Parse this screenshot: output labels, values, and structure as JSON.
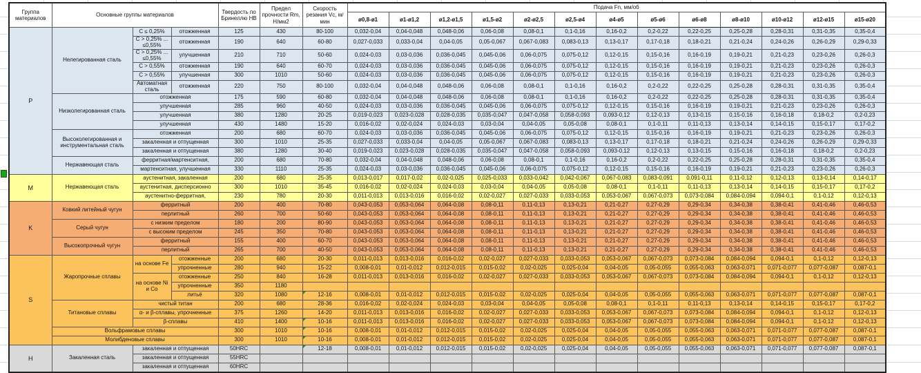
{
  "header": {
    "group_col": "Группа материалов",
    "main_col": "Основные группы материалов",
    "hardness_col": "Твердость по Бринеллю НВ",
    "strength_col": "Предел прочности Rm, Н/мм2",
    "speed_col": "Скорость резания Vc, м/мин",
    "feed_title": "Подача Fn, мм/об",
    "diameters": [
      "ø0,8-ø1",
      "ø1-ø1,2",
      "ø1,2-ø1,5",
      "ø1,5-ø2",
      "ø2-ø2,5",
      "ø2,5-ø4",
      "ø4-ø5",
      "ø5-ø6",
      "ø6-ø8",
      "ø8-ø10",
      "ø10-ø12",
      "ø12-ø15",
      "ø15-ø20"
    ]
  },
  "colors": {
    "group_p": "#DCE6F1",
    "group_m": "#FFFF99",
    "group_k": "#F6AD74",
    "group_s": "#FCC25C",
    "group_h": "#D9D9D9",
    "note_marker": "#2E8B2E",
    "selected_cell": "#1EA11E",
    "border": "#595959"
  },
  "fn_patterns": {
    "P1": [
      "0,032-0,04",
      "0,04-0,048",
      "0,048-0,06",
      "0,06-0,08",
      "0,08-0,1",
      "0,1-0,16",
      "0,16-0,2",
      "0,2-0,22",
      "0,22-0,25",
      "0,25-0,28",
      "0,28-0,31",
      "0,31-0,35",
      "0,35-0,4"
    ],
    "P2": [
      "0,027-0,033",
      "0,033-0,04",
      "0,04-0,05",
      "0,05-0,067",
      "0,067-0,083",
      "0,083-0,13",
      "0,13-0,17",
      "0,17-0,18",
      "0,18-0,21",
      "0,21-0,24",
      "0,24-0,26",
      "0,26-0,29",
      "0,29-0,33"
    ],
    "P3": [
      "0,024-0,03",
      "0,03-0,036",
      "0,036-0,045",
      "0,045-0,06",
      "0,06-0,075",
      "0,075-0,12",
      "0,12-0,15",
      "0,15-0,16",
      "0,16-0,19",
      "0,19-0,21",
      "0,21-0,23",
      "0,23-0,26",
      "0,26-0,3"
    ],
    "P9": [
      "0,019-0,023",
      "0,023-0,028",
      "0,028-0,035",
      "0,035-0,047",
      "0,047-0,058",
      "0,058-0,093",
      "0,093-0,12",
      "0,12-0,13",
      "0,13-0,15",
      "0,15-0,16",
      "0,16-0,18",
      "0,18-0,2",
      "0,2-0,23"
    ],
    "P10": [
      "0,016-0,02",
      "0,02-0,024",
      "0,024-0,03",
      "0,03-0,04",
      "0,04-0,05",
      "0,05-0,08",
      "0,08-0,1",
      "0,1-0,11",
      "0,11-0,13",
      "0,13-0,14",
      "0,14-0,15",
      "0,15-0,17",
      "0,17-0,2"
    ],
    "M16": [
      "0,013-0,017",
      "0,017-0,02",
      "0,02-0,025",
      "0,025-0,033",
      "0,033-0,042",
      "0,042-0,067",
      "0,067-0,083",
      "0,083-0,091",
      "0,091-0,11",
      "0,11-0,12",
      "0,12-0,13",
      "0,13-0,14",
      "0,14-0,17"
    ],
    "M18": [
      "0,011-0,013",
      "0,013-0,016",
      "0,016-0,02",
      "0,02-0,027",
      "0,027-0,033",
      "0,033-0,053",
      "0,053-0,067",
      "0,067-0,073",
      "0,073-0,084",
      "0,084-0,094",
      "0,094-0,1",
      "0,1-0,12",
      "0,12-0,13"
    ],
    "K": [
      "0,043-0,053",
      "0,053-0,064",
      "0,064-0,08",
      "0,08-0,11",
      "0,11-0,13",
      "0,13-0,21",
      "0,21-0,27",
      "0,27-0,29",
      "0,29-0,34",
      "0,34-0,38",
      "0,38-0,41",
      "0,41-0,46",
      "0,46-0,53"
    ],
    "S26": [
      "0,008-0,01",
      "0,01-0,012",
      "0,012-0,015",
      "0,015-0,02",
      "0,02-0,025",
      "0,025-0,04",
      "0,04-0,05",
      "0,05-0,055",
      "0,055-0,063",
      "0,063-0,071",
      "0,071-0,077",
      "0,077-0,087",
      "0,087-0,1"
    ],
    "EMPTY": [
      "",
      "",
      "",
      "",
      "",
      "",
      "",
      "",
      "",
      "",
      "",
      "",
      ""
    ]
  },
  "groups": [
    {
      "letter": "P",
      "color": "#DCE6F1",
      "rows": [
        {
          "mat": [
            {
              "t": "Нелегированная сталь",
              "rs": 6
            },
            {
              "t": "C ≤ 0,25%"
            },
            {
              "t": "отожженная"
            }
          ],
          "hb": "125",
          "rm": "430",
          "vc": "80-100",
          "note": false,
          "fn": "P1"
        },
        {
          "mat": [
            {
              "t": "C > 0,25% ... ≤0,55%"
            },
            {
              "t": "отожженная"
            }
          ],
          "hb": "190",
          "rm": "640",
          "vc": "60-80",
          "note": false,
          "fn": "P2"
        },
        {
          "mat": [
            {
              "t": "C > 0,25% ... ≤0,55%"
            },
            {
              "t": "улучшенная"
            }
          ],
          "hb": "210",
          "rm": "710",
          "vc": "50-60",
          "note": false,
          "fn": "P3"
        },
        {
          "mat": [
            {
              "t": "C > 0,55%"
            },
            {
              "t": "отожженная"
            }
          ],
          "hb": "190",
          "rm": "640",
          "vc": "60-70",
          "note": false,
          "fn": "P3"
        },
        {
          "mat": [
            {
              "t": "C > 0,55%"
            },
            {
              "t": "улучшенная"
            }
          ],
          "hb": "300",
          "rm": "1010",
          "vc": "50-60",
          "note": false,
          "fn": "P3"
        },
        {
          "mat": [
            {
              "t": "Автоматная сталь"
            },
            {
              "t": "отожженная"
            }
          ],
          "hb": "220",
          "rm": "750",
          "vc": "80-100",
          "note": false,
          "fn": "P1"
        },
        {
          "mat": [
            {
              "t": "Низколегированная сталь",
              "rs": 4
            },
            {
              "t": "отожженная",
              "cs": 2
            }
          ],
          "hb": "175",
          "rm": "590",
          "vc": "60-80",
          "note": false,
          "fn": "P1"
        },
        {
          "mat": [
            {
              "t": "улучшенная",
              "cs": 2
            }
          ],
          "hb": "285",
          "rm": "960",
          "vc": "40-50",
          "note": false,
          "fn": "P3"
        },
        {
          "mat": [
            {
              "t": "улучшенная",
              "cs": 2
            }
          ],
          "hb": "380",
          "rm": "1280",
          "vc": "20-25",
          "note": false,
          "fn": "P9"
        },
        {
          "mat": [
            {
              "t": "улучшенная",
              "cs": 2
            }
          ],
          "hb": "430",
          "rm": "1480",
          "vc": "15-20",
          "note": false,
          "fn": "P10"
        },
        {
          "mat": [
            {
              "t": "Высоколегированная и инструментальная сталь",
              "rs": 3
            },
            {
              "t": "отожженная",
              "cs": 2
            }
          ],
          "hb": "200",
          "rm": "680",
          "vc": "60-70",
          "note": false,
          "fn": "P3"
        },
        {
          "mat": [
            {
              "t": "закаленная и отпущенная",
              "cs": 2
            }
          ],
          "hb": "300",
          "rm": "1010",
          "vc": "25-35",
          "note": false,
          "fn": "P2"
        },
        {
          "mat": [
            {
              "t": "закаленная и отпущенная",
              "cs": 2
            }
          ],
          "hb": "380",
          "rm": "1280",
          "vc": "30-40",
          "note": false,
          "fn": "P9"
        },
        {
          "mat": [
            {
              "t": "Нержавеющая сталь",
              "rs": 2
            },
            {
              "t": "ферритная/мартенситная,",
              "cs": 2
            }
          ],
          "hb": "200",
          "rm": "680",
          "vc": "70-80",
          "note": false,
          "fn": "P1"
        },
        {
          "mat": [
            {
              "t": "мартенситная, улучшенная",
              "cs": 2
            }
          ],
          "hb": "330",
          "rm": "1110",
          "vc": "25-35",
          "note": false,
          "fn": "P3"
        }
      ]
    },
    {
      "letter": "M",
      "color": "#FFFF99",
      "rows": [
        {
          "mat": [
            {
              "t": "Нержавеющая сталь",
              "rs": 3
            },
            {
              "t": "аустенитная, закаленная",
              "cs": 2
            }
          ],
          "hb": "200",
          "rm": "680",
          "vc": "25-35",
          "note": false,
          "fn": "M16"
        },
        {
          "mat": [
            {
              "t": "аустенитная, дисперсионно",
              "cs": 2
            }
          ],
          "hb": "300",
          "rm": "1010",
          "vc": "35-45",
          "note": false,
          "fn": "P10"
        },
        {
          "mat": [
            {
              "t": "аустенитно-ферритная,",
              "cs": 2
            }
          ],
          "hb": "230",
          "rm": "780",
          "vc": "20-30",
          "note": false,
          "fn": "M18"
        }
      ]
    },
    {
      "letter": "K",
      "color": "#F6AD74",
      "rows": [
        {
          "mat": [
            {
              "t": "Ковкий литейный чугун",
              "rs": 2
            },
            {
              "t": "ферритный",
              "cs": 2
            }
          ],
          "hb": "200",
          "rm": "400",
          "vc": "70-80",
          "note": false,
          "fn": "K"
        },
        {
          "mat": [
            {
              "t": "перлитный",
              "cs": 2
            }
          ],
          "hb": "260",
          "rm": "700",
          "vc": "50-60",
          "note": false,
          "fn": "K"
        },
        {
          "mat": [
            {
              "t": "Серый чугун",
              "rs": 2
            },
            {
              "t": "с низким пределом",
              "cs": 2
            }
          ],
          "hb": "180",
          "rm": "200",
          "vc": "80-90",
          "note": false,
          "fn": "K"
        },
        {
          "mat": [
            {
              "t": "с высоким пределом",
              "cs": 2
            }
          ],
          "hb": "245",
          "rm": "350",
          "vc": "70-80",
          "note": false,
          "fn": "K"
        },
        {
          "mat": [
            {
              "t": "Высокопрочный чугун",
              "rs": 2
            },
            {
              "t": "ферритный",
              "cs": 2
            }
          ],
          "hb": "155",
          "rm": "400",
          "vc": "60-70",
          "note": false,
          "fn": "K"
        },
        {
          "mat": [
            {
              "t": "перлитный",
              "cs": 2
            }
          ],
          "hb": "265",
          "rm": "700",
          "vc": "40-50",
          "note": false,
          "fn": "K"
        }
      ]
    },
    {
      "letter": "S",
      "color": "#FCC25C",
      "rows": [
        {
          "mat": [
            {
              "t": "Жаропрочные сплавы",
              "rs": 5
            },
            {
              "t": "на основе Fe",
              "rs": 2
            },
            {
              "t": "отожженные"
            }
          ],
          "hb": "200",
          "rm": "680",
          "vc": "20-30",
          "note": false,
          "fn": "M18"
        },
        {
          "mat": [
            {
              "t": "упрочненные"
            }
          ],
          "hb": "280",
          "rm": "940",
          "vc": "15-22",
          "note": false,
          "fn": "S26"
        },
        {
          "mat": [
            {
              "t": "на основе Ni и Co",
              "rs": 3
            },
            {
              "t": "отожженные"
            }
          ],
          "hb": "250",
          "rm": "840",
          "vc": "16-28",
          "note": false,
          "fn": "M18"
        },
        {
          "mat": [
            {
              "t": "упрочненные"
            }
          ],
          "hb": "350",
          "rm": "1180",
          "vc": "",
          "note": false,
          "fn": "EMPTY"
        },
        {
          "mat": [
            {
              "t": "литьё"
            }
          ],
          "hb": "320",
          "rm": "1080",
          "vc": "12-16",
          "note": true,
          "fn": "S26"
        },
        {
          "mat": [
            {
              "t": "Титановые сплавы",
              "rs": 3
            },
            {
              "t": "чистый титан",
              "cs": 2
            }
          ],
          "hb": "200",
          "rm": "680",
          "vc": "28-36",
          "note": false,
          "fn": "P10"
        },
        {
          "mat": [
            {
              "t": "α- и β-сплавы, упрочненные",
              "cs": 2
            }
          ],
          "hb": "375",
          "rm": "1260",
          "vc": "14-20",
          "note": false,
          "fn": "M18"
        },
        {
          "mat": [
            {
              "t": "β-сплавы",
              "cs": 2
            }
          ],
          "hb": "410",
          "rm": "1400",
          "vc": "10-16",
          "note": true,
          "fn": "M18"
        },
        {
          "mat": [
            {
              "t": "Вольфрамовые сплавы",
              "cs": 3
            }
          ],
          "hb": "300",
          "rm": "1010",
          "vc": "10-16",
          "note": true,
          "fn": "S26"
        },
        {
          "mat": [
            {
              "t": "Молибденовые сплавы",
              "cs": 3
            }
          ],
          "hb": "300",
          "rm": "1010",
          "vc": "10-16",
          "note": true,
          "fn": "S26"
        }
      ]
    },
    {
      "letter": "H",
      "color": "#D9D9D9",
      "rows": [
        {
          "mat": [
            {
              "t": "Закаленная сталь",
              "rs": 3
            },
            {
              "t": "закаленная и отпущенная",
              "cs": 2
            }
          ],
          "hb": "50HRC",
          "rm": "",
          "vc": "12-18",
          "note": true,
          "fn": "S26"
        },
        {
          "mat": [
            {
              "t": "закаленная и отпущенная",
              "cs": 2
            }
          ],
          "hb": "55HRC",
          "rm": "",
          "vc": "",
          "note": false,
          "fn": "EMPTY"
        },
        {
          "mat": [
            {
              "t": "закаленная и отпущенная",
              "cs": 2
            }
          ],
          "hb": "60HRC",
          "rm": "",
          "vc": "",
          "note": false,
          "fn": "EMPTY"
        }
      ]
    }
  ]
}
